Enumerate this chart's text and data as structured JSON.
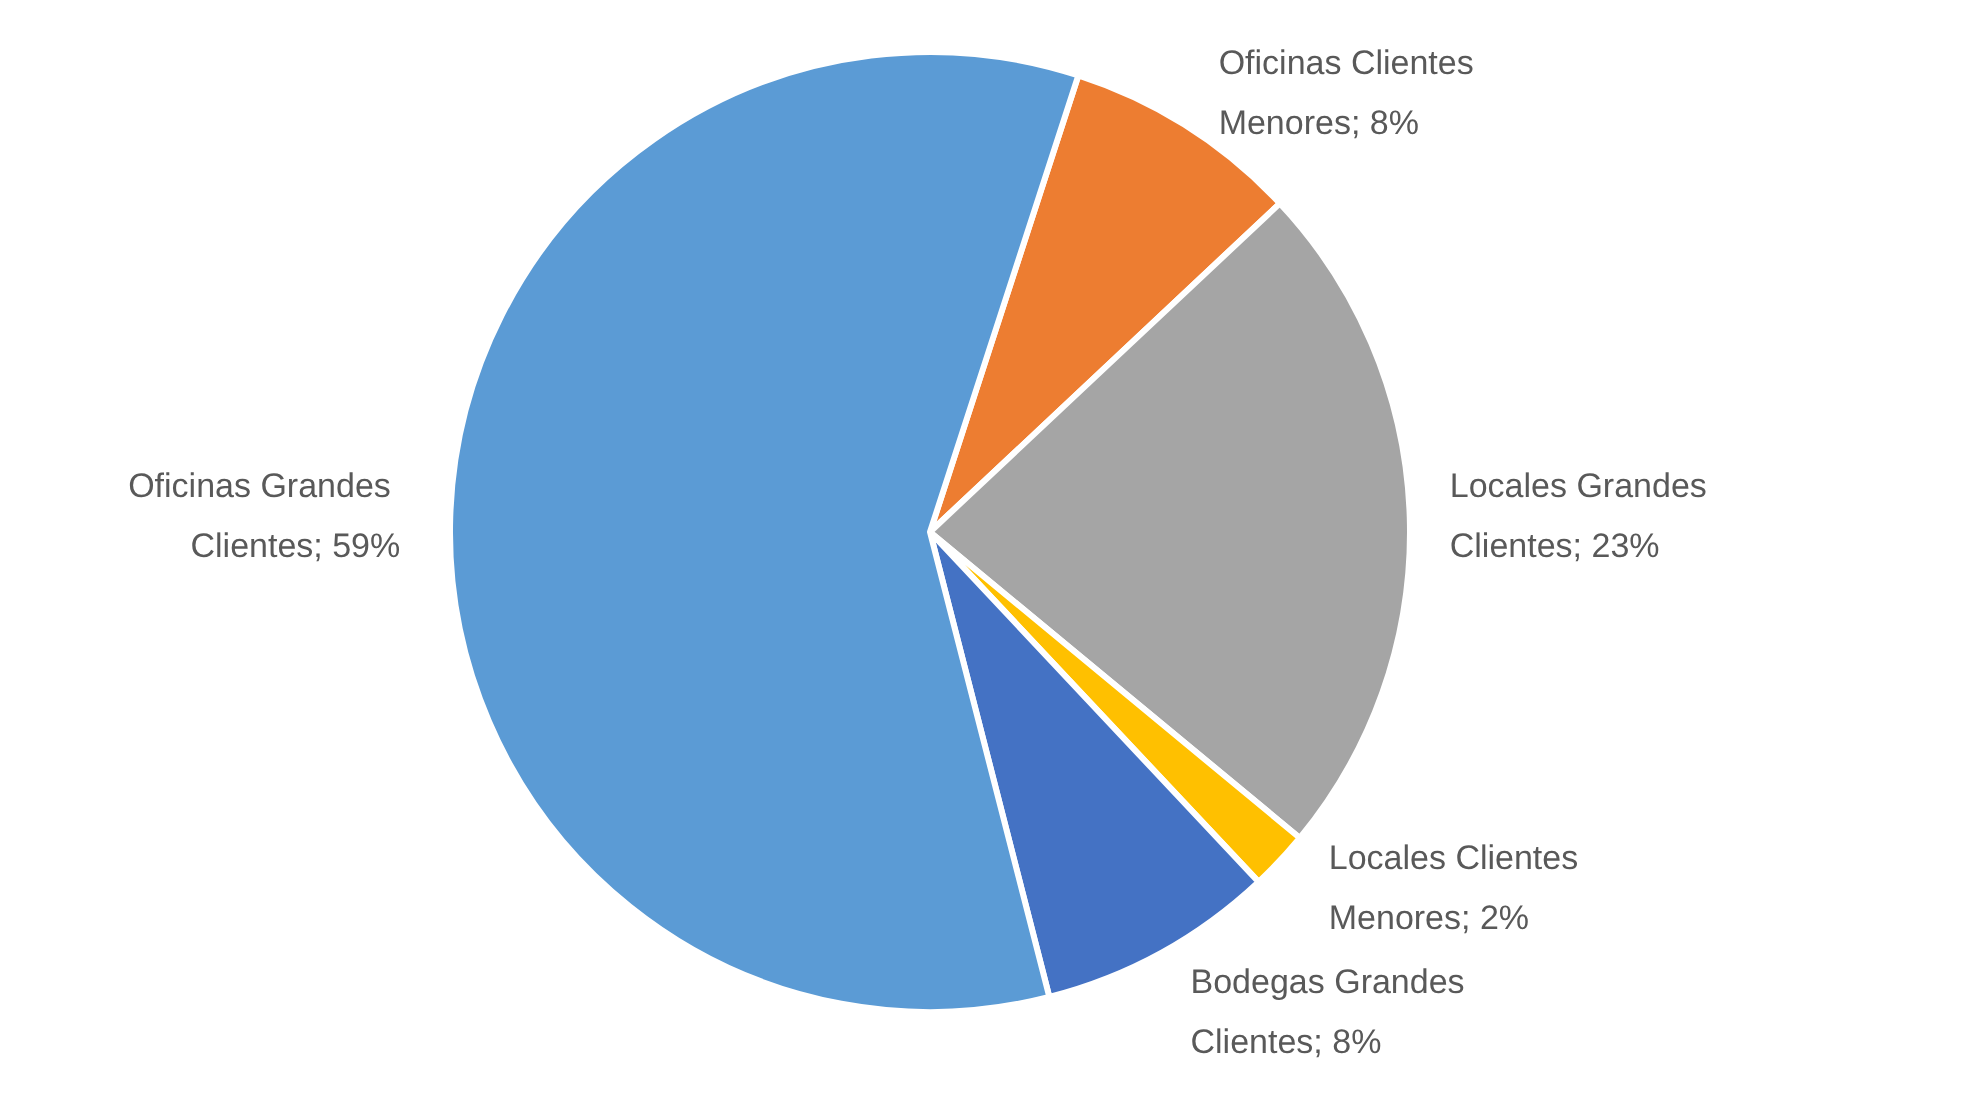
{
  "chart_data": {
    "type": "pie",
    "categories": [
      "Oficinas Clientes Menores",
      "Locales Grandes Clientes",
      "Locales Clientes Menores",
      "Bodegas Grandes Clientes",
      "Oficinas Grandes Clientes"
    ],
    "values": [
      8,
      23,
      2,
      8,
      59
    ],
    "colors": [
      "#ed7d31",
      "#a5a5a5",
      "#ffc000",
      "#4472c4",
      "#5b9bd5"
    ],
    "value_labels": [
      "8%",
      "23%",
      "2%",
      "8%",
      "59%"
    ],
    "legend": false
  }
}
